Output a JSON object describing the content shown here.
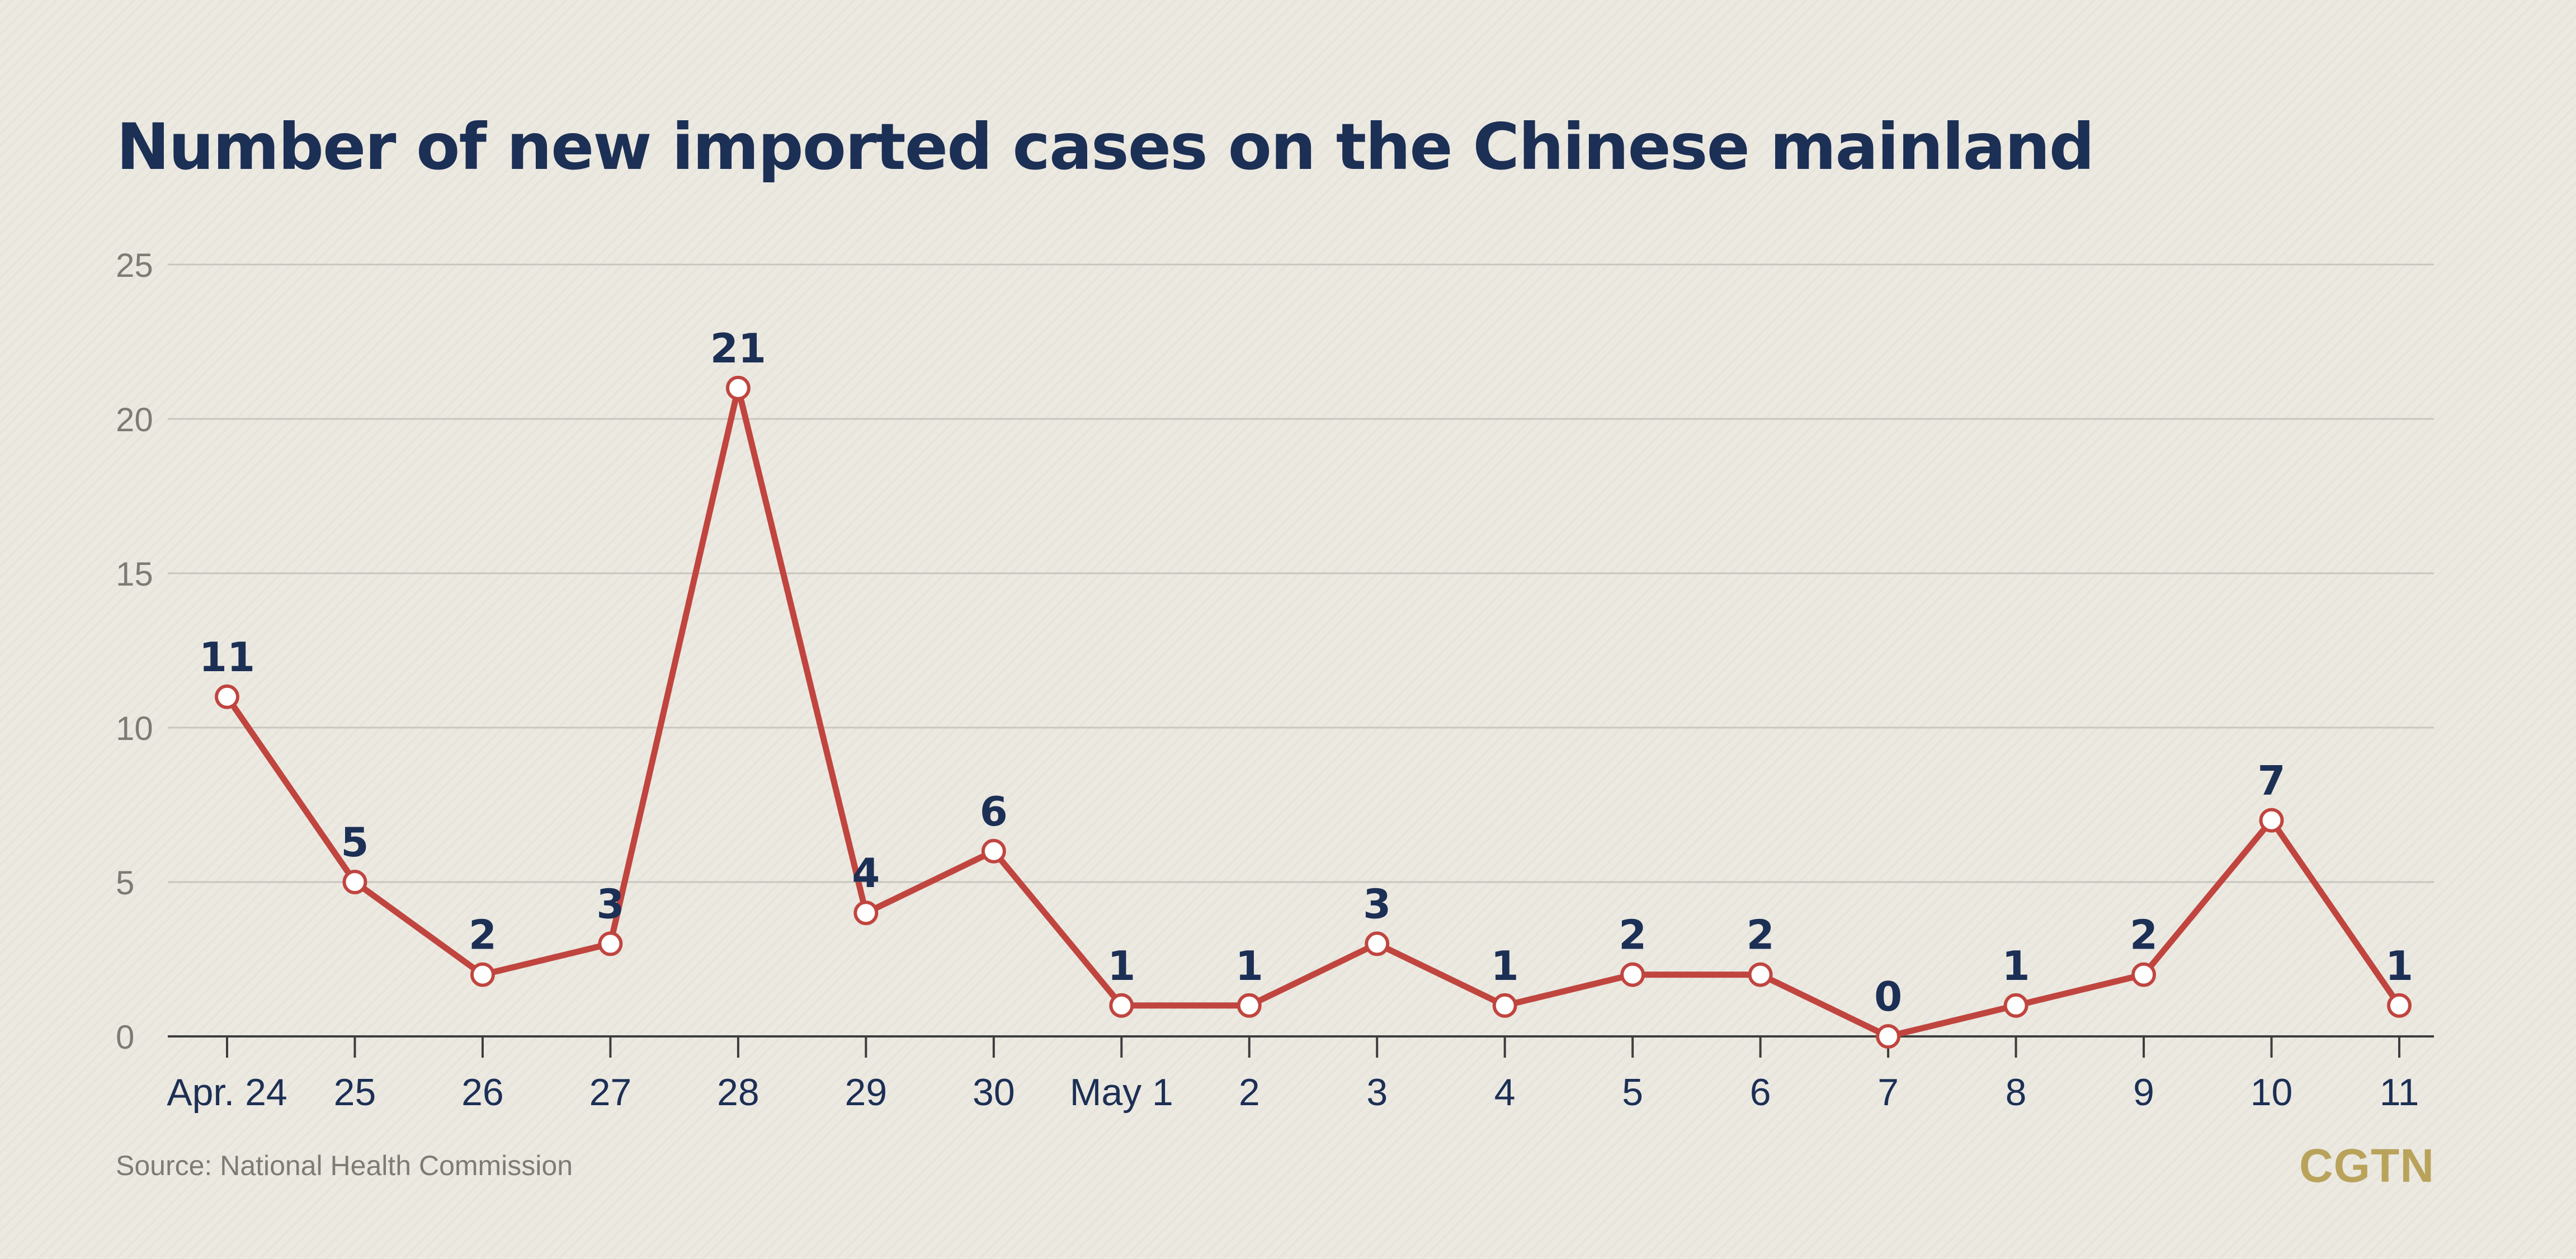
{
  "chart_data": {
    "type": "line",
    "title": "Number of new imported cases on the Chinese mainland",
    "categories": [
      "Apr. 24",
      "25",
      "26",
      "27",
      "28",
      "29",
      "30",
      "May 1",
      "2",
      "3",
      "4",
      "5",
      "6",
      "7",
      "8",
      "9",
      "10",
      "11"
    ],
    "series": [
      {
        "values": [
          11,
          5,
          2,
          3,
          21,
          4,
          6,
          1,
          1,
          3,
          1,
          2,
          2,
          0,
          1,
          2,
          7,
          1
        ],
        "color": "#c0453f"
      }
    ],
    "y_ticks": [
      "0",
      "5",
      "10",
      "15",
      "20",
      "25"
    ],
    "ylim": [
      0,
      25
    ],
    "grid": true,
    "legend": "none",
    "source": "Source: National Health Commission",
    "logo": "CGTN"
  },
  "colors": {
    "line": "#c0453f",
    "labels": "#1c2f55",
    "grid": "#c9c6bf",
    "axis": "#3d3d3d",
    "logo": "#b9a35b"
  }
}
